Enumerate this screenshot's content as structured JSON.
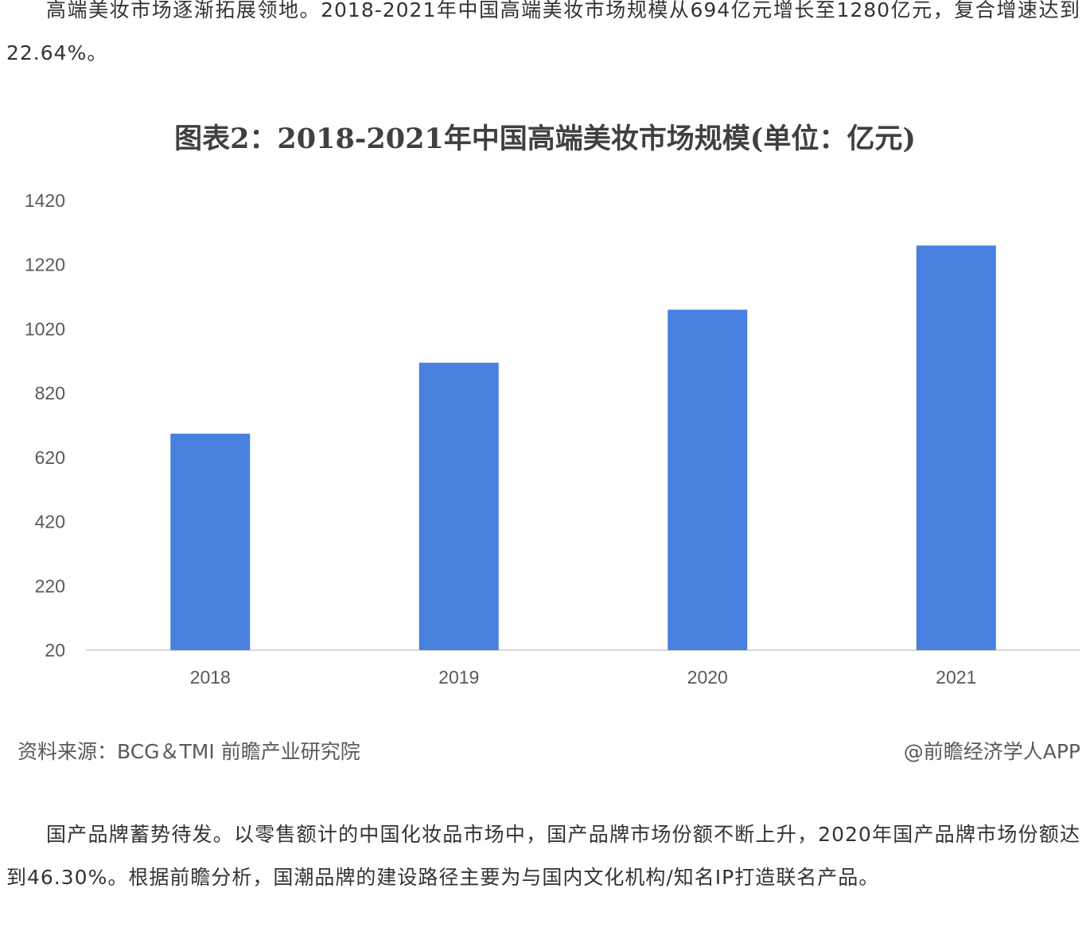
{
  "article": {
    "para_top": "高端美妆市场逐渐拓展领地。2018-2021年中国高端美妆市场规模从694亿元增长至1280亿元，复合增速达到22.64%。",
    "para_bottom": "国产品牌蓄势待发。以零售额计的中国化妆品市场中，国产品牌市场份额不断上升，2020年国产品牌市场份额达到46.30%。根据前瞻分析，国潮品牌的建设路径主要为与国内文化机构/知名IP打造联名产品。"
  },
  "chart": {
    "source": "资料来源：BCG＆TMI 前瞻产业研究院",
    "brand": "@前瞻经济学人APP",
    "bar_color": "#4a80e0",
    "axis_color": "#d9d9d9"
  },
  "chart_data": {
    "type": "bar",
    "title": "图表2：2018-2021年中国高端美妆市场规模(单位：亿元)",
    "categories": [
      "2018",
      "2019",
      "2020",
      "2021"
    ],
    "values": [
      694,
      915,
      1080,
      1280
    ],
    "yticks": [
      20,
      220,
      420,
      620,
      820,
      1020,
      1220,
      1420
    ],
    "ylim": [
      20,
      1420
    ],
    "xlabel": "",
    "ylabel": "",
    "grid": false,
    "legend": "none"
  }
}
